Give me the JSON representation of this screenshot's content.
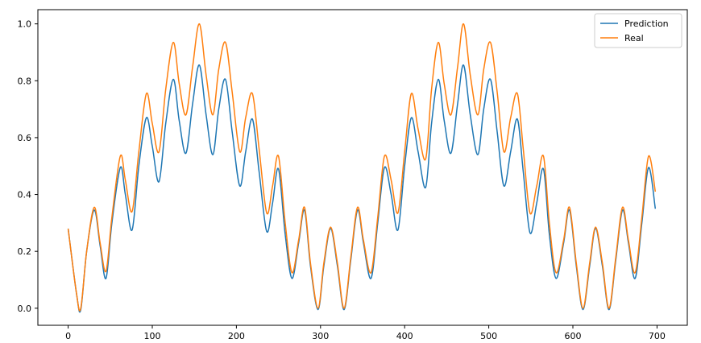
{
  "chart_data": {
    "type": "line",
    "title": "",
    "xlabel": "",
    "ylabel": "",
    "xlim": [
      -36,
      736
    ],
    "ylim": [
      -0.06,
      1.05
    ],
    "x_ticks": [
      0,
      100,
      200,
      300,
      400,
      500,
      600,
      700
    ],
    "x_tick_labels": [
      "0",
      "100",
      "200",
      "300",
      "400",
      "500",
      "600",
      "700"
    ],
    "y_ticks": [
      0.0,
      0.2,
      0.4,
      0.6,
      0.8,
      1.0
    ],
    "y_tick_labels": [
      "0.0",
      "0.2",
      "0.4",
      "0.6",
      "0.8",
      "1.0"
    ],
    "grid": false,
    "legend_position": "top-right",
    "x": [
      0,
      10,
      15,
      22,
      31,
      38,
      45,
      52,
      62,
      68,
      76,
      84,
      93,
      100,
      108,
      116,
      125,
      132,
      140,
      148,
      156,
      164,
      172,
      179,
      187,
      195,
      204,
      211,
      219,
      227,
      236,
      243,
      250,
      258,
      266,
      274,
      281,
      288,
      297,
      304,
      312,
      320,
      328,
      336,
      344,
      351,
      360,
      368,
      376,
      384,
      392,
      400,
      408,
      416,
      425,
      432,
      440,
      447,
      455,
      463,
      470,
      478,
      487,
      494,
      502,
      510,
      518,
      526,
      534,
      541,
      549,
      557,
      565,
      572,
      580,
      589,
      596,
      604,
      612,
      620,
      627,
      635,
      643,
      651,
      659,
      666,
      674,
      682,
      690,
      698
    ],
    "series": [
      {
        "name": "Prediction",
        "color": "#1f77b4",
        "values": [
          0.28,
          0.05,
          -0.005,
          0.2,
          0.345,
          0.22,
          0.105,
          0.3,
          0.495,
          0.4,
          0.275,
          0.5,
          0.67,
          0.57,
          0.445,
          0.65,
          0.805,
          0.66,
          0.545,
          0.72,
          0.855,
          0.68,
          0.54,
          0.7,
          0.805,
          0.62,
          0.43,
          0.55,
          0.665,
          0.48,
          0.27,
          0.37,
          0.49,
          0.26,
          0.105,
          0.23,
          0.345,
          0.15,
          -0.005,
          0.15,
          0.28,
          0.15,
          -0.005,
          0.17,
          0.345,
          0.23,
          0.105,
          0.3,
          0.495,
          0.4,
          0.275,
          0.5,
          0.67,
          0.55,
          0.425,
          0.65,
          0.805,
          0.66,
          0.545,
          0.72,
          0.855,
          0.68,
          0.54,
          0.7,
          0.805,
          0.62,
          0.43,
          0.55,
          0.665,
          0.48,
          0.265,
          0.37,
          0.49,
          0.26,
          0.105,
          0.23,
          0.345,
          0.15,
          -0.005,
          0.15,
          0.28,
          0.15,
          -0.005,
          0.17,
          0.345,
          0.23,
          0.105,
          0.3,
          0.495,
          0.35
        ]
      },
      {
        "name": "Real",
        "color": "#ff7f0e",
        "values": [
          0.28,
          0.05,
          0.0,
          0.2,
          0.355,
          0.23,
          0.13,
          0.32,
          0.535,
          0.45,
          0.34,
          0.55,
          0.755,
          0.65,
          0.55,
          0.77,
          0.935,
          0.79,
          0.68,
          0.85,
          1.0,
          0.82,
          0.68,
          0.84,
          0.935,
          0.76,
          0.55,
          0.67,
          0.755,
          0.56,
          0.335,
          0.43,
          0.535,
          0.3,
          0.125,
          0.24,
          0.355,
          0.16,
          0.0,
          0.16,
          0.285,
          0.16,
          0.0,
          0.18,
          0.355,
          0.24,
          0.125,
          0.32,
          0.535,
          0.45,
          0.335,
          0.55,
          0.755,
          0.63,
          0.525,
          0.77,
          0.935,
          0.79,
          0.68,
          0.85,
          1.0,
          0.82,
          0.68,
          0.84,
          0.935,
          0.76,
          0.55,
          0.67,
          0.755,
          0.56,
          0.335,
          0.43,
          0.535,
          0.3,
          0.125,
          0.24,
          0.355,
          0.16,
          0.0,
          0.16,
          0.285,
          0.16,
          0.0,
          0.18,
          0.355,
          0.24,
          0.125,
          0.32,
          0.535,
          0.41
        ]
      }
    ]
  }
}
